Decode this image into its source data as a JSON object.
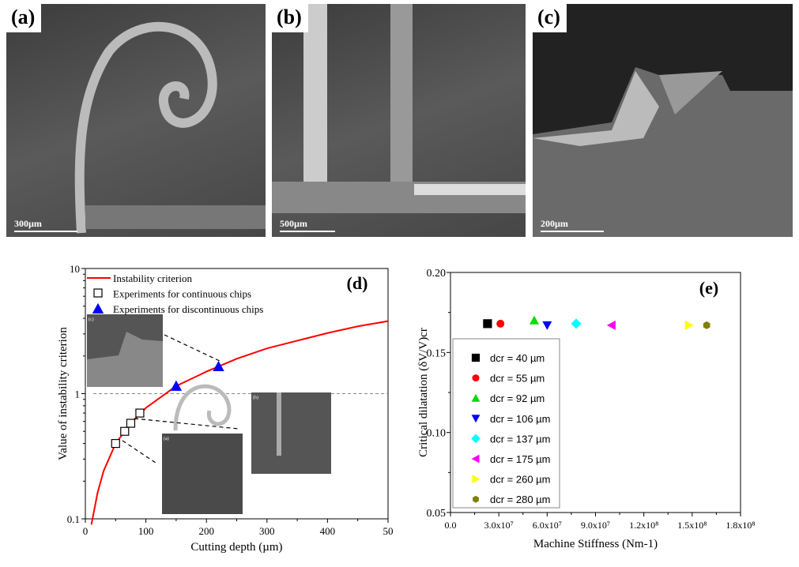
{
  "panels": [
    {
      "label": "(a)",
      "scale": "300µm"
    },
    {
      "label": "(b)",
      "scale": "500µm"
    },
    {
      "label": "(c)",
      "scale": "200µm"
    }
  ],
  "chart_data": [
    {
      "type": "line",
      "panel": "(d)",
      "xlabel": "Cutting depth (µm)",
      "ylabel": "Value of instability criterion",
      "xlim": [
        0,
        500
      ],
      "ylim": [
        0.1,
        10
      ],
      "yscale": "log",
      "xticks": [
        "0",
        "100",
        "200",
        "300",
        "400",
        "50"
      ],
      "yticks": [
        "0.1",
        "1",
        "10"
      ],
      "threshold": 1,
      "legend": [
        "Instability criterion",
        "Experiments for continuous chips",
        "Experiments for discontinuous chips"
      ],
      "legend_position": "top-left",
      "series": [
        {
          "name": "Instability criterion",
          "color": "#ff0000",
          "x": [
            10,
            20,
            30,
            50,
            75,
            100,
            150,
            200,
            250,
            300,
            350,
            400,
            450,
            500
          ],
          "y": [
            0.09,
            0.16,
            0.24,
            0.4,
            0.58,
            0.77,
            1.15,
            1.5,
            1.9,
            2.3,
            2.65,
            3.05,
            3.45,
            3.8
          ]
        },
        {
          "name": "Experiments for continuous chips",
          "marker": "square",
          "x": [
            50,
            65,
            75,
            90
          ],
          "y": [
            0.4,
            0.5,
            0.58,
            0.7
          ]
        },
        {
          "name": "Experiments for discontinuous chips",
          "marker": "triangle",
          "color": "#0000ff",
          "x": [
            150,
            220
          ],
          "y": [
            1.15,
            1.65
          ]
        }
      ],
      "insets": [
        "(c)",
        "(a)",
        "(b)"
      ]
    },
    {
      "type": "scatter",
      "panel": "(e)",
      "xlabel": "Machine Stiffness (Nm-1)",
      "ylabel": "Critical dilatation (δV/V)cr",
      "xlim": [
        0,
        180000000.0
      ],
      "ylim": [
        0.05,
        0.2
      ],
      "xticks": [
        "0.0",
        "3.0x10⁷",
        "6.0x10⁷",
        "9.0x10⁷",
        "1.2x10⁸",
        "1.5x10⁸",
        "1.8x10⁸"
      ],
      "yticks": [
        "0.05",
        "0.10",
        "0.15",
        "0.20"
      ],
      "legend_position": "bottom-left",
      "series": [
        {
          "name": "dcr = 40 µm",
          "marker": "square",
          "color": "#000000",
          "x": 23000000.0,
          "y": 0.168
        },
        {
          "name": "dcr = 55 µm",
          "marker": "circle",
          "color": "#ff0000",
          "x": 31000000.0,
          "y": 0.168
        },
        {
          "name": "dcr = 92 µm",
          "marker": "triangle-up",
          "color": "#00dd00",
          "x": 52000000.0,
          "y": 0.17
        },
        {
          "name": "dcr = 106 µm",
          "marker": "triangle-down",
          "color": "#0000ff",
          "x": 60000000.0,
          "y": 0.167
        },
        {
          "name": "dcr = 137 µm",
          "marker": "diamond",
          "color": "#00ffff",
          "x": 78000000.0,
          "y": 0.168
        },
        {
          "name": "dcr = 175 µm",
          "marker": "triangle-left",
          "color": "#ff00ff",
          "x": 100000000.0,
          "y": 0.167
        },
        {
          "name": "dcr = 260 µm",
          "marker": "triangle-right",
          "color": "#ffff00",
          "x": 148000000.0,
          "y": 0.167
        },
        {
          "name": "dcr = 280 µm",
          "marker": "hexagon",
          "color": "#808000",
          "x": 159000000.0,
          "y": 0.167
        }
      ]
    }
  ]
}
